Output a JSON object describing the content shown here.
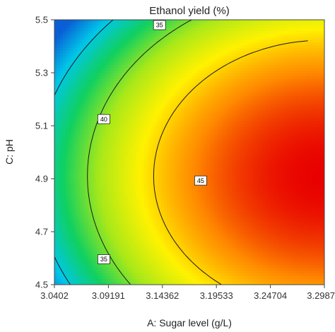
{
  "chart_data": {
    "type": "heatmap",
    "subtype": "contour",
    "title": "Ethanol yield  (%)",
    "xlabel": "A: Sugar level  (g/L)",
    "ylabel": "C: pH",
    "xlim": [
      3.0402,
      3.2987
    ],
    "ylim": [
      4.5,
      5.5
    ],
    "x_ticks": [
      "3.0402",
      "3.09191",
      "3.14362",
      "3.19533",
      "3.24704",
      "3.2987"
    ],
    "y_ticks": [
      "4.5",
      "4.7",
      "4.9",
      "5.1",
      "5.3",
      "5.5"
    ],
    "contour_levels": [
      35,
      40,
      45
    ],
    "contour_labels": [
      {
        "value": "35",
        "x": 3.1408,
        "y": 5.48
      },
      {
        "value": "40",
        "x": 3.0875,
        "y": 5.125
      },
      {
        "value": "45",
        "x": 3.1802,
        "y": 4.893
      },
      {
        "value": "35",
        "x": 3.0875,
        "y": 4.596
      }
    ],
    "grid": false,
    "colormap": [
      "#0a5fd6",
      "#00c7e8",
      "#10d060",
      "#a6e81a",
      "#fff200",
      "#ff8a00",
      "#e80000"
    ]
  }
}
